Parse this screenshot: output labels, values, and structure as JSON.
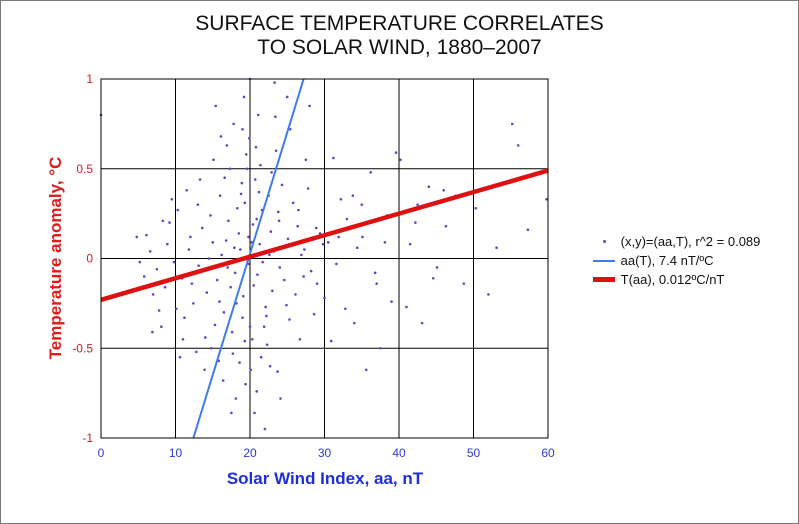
{
  "chart_data": {
    "type": "scatter",
    "title_lines": [
      "SURFACE TEMPERATURE CORRELATES",
      "TO SOLAR WIND, 1880–2007"
    ],
    "xlabel": "Solar Wind Index, aa, nT",
    "ylabel": "Temperature anomaly, °C",
    "xlim": [
      0,
      60
    ],
    "ylim": [
      -1,
      1
    ],
    "xticks": [
      0,
      10,
      20,
      30,
      40,
      50,
      60
    ],
    "xtick_labels": [
      "0",
      "10",
      "20",
      "30",
      "40",
      "50",
      "60"
    ],
    "yticks": [
      -1,
      -0.5,
      0,
      0.5,
      1
    ],
    "ytick_labels": [
      "-1",
      "-0.5",
      "0",
      "0.5",
      "1"
    ],
    "grid": true,
    "legend_position": "right",
    "colors": {
      "title": "#111111",
      "xlabel": "#1f2fd6",
      "ylabel": "#e01b1b",
      "xtick": "#2e3bd0",
      "ytick": "#d41c1c",
      "points": "#6a3fc8",
      "aa_line": "#3d7de8",
      "t_line": "#dd1111",
      "grid": "#000000"
    },
    "series": [
      {
        "name": "(x,y)=(aa,T), r^2 = 0.089",
        "kind": "scatter",
        "points": [
          [
            20.0,
            1.0
          ],
          [
            19.8,
            -0.03
          ],
          [
            21.3,
            0.08
          ],
          [
            19.7,
            -0.01
          ],
          [
            17.4,
            -0.16
          ],
          [
            20.2,
            0.09
          ],
          [
            24.0,
            -0.05
          ],
          [
            18.7,
            0.05
          ],
          [
            22.8,
            0.15
          ],
          [
            19.1,
            -0.21
          ],
          [
            21.7,
            -0.02
          ],
          [
            16.8,
            0.1
          ],
          [
            23.2,
            0.04
          ],
          [
            18.0,
            -0.08
          ],
          [
            20.9,
            0.22
          ],
          [
            15.6,
            -0.12
          ],
          [
            25.1,
            0.11
          ],
          [
            19.3,
            0.31
          ],
          [
            22.1,
            -0.27
          ],
          [
            17.9,
            0.06
          ],
          [
            26.4,
            0.18
          ],
          [
            14.2,
            -0.19
          ],
          [
            21.0,
            -0.09
          ],
          [
            18.5,
            0.14
          ],
          [
            23.8,
            0.26
          ],
          [
            20.5,
            -0.15
          ],
          [
            16.2,
            0.02
          ],
          [
            27.3,
            0.05
          ],
          [
            19.0,
            -0.33
          ],
          [
            22.5,
            0.35
          ],
          [
            13.1,
            -0.04
          ],
          [
            24.6,
            -0.12
          ],
          [
            17.1,
            0.21
          ],
          [
            20.7,
            0.44
          ],
          [
            15.0,
            0.09
          ],
          [
            28.2,
            -0.07
          ],
          [
            21.9,
            -0.38
          ],
          [
            18.3,
            0.28
          ],
          [
            12.4,
            -0.25
          ],
          [
            25.8,
            0.31
          ],
          [
            19.5,
            0.58
          ],
          [
            23.0,
            -0.18
          ],
          [
            16.5,
            -0.3
          ],
          [
            29.4,
            0.14
          ],
          [
            11.8,
            0.05
          ],
          [
            20.3,
            -0.45
          ],
          [
            26.9,
            0.02
          ],
          [
            14.7,
            0.24
          ],
          [
            22.9,
            0.48
          ],
          [
            17.6,
            -0.41
          ],
          [
            10.9,
            -0.11
          ],
          [
            30.5,
            0.09
          ],
          [
            19.9,
            0.67
          ],
          [
            24.9,
            -0.26
          ],
          [
            13.6,
            0.17
          ],
          [
            21.5,
            -0.55
          ],
          [
            27.8,
            0.39
          ],
          [
            15.3,
            -0.37
          ],
          [
            18.9,
            0.42
          ],
          [
            31.6,
            -0.03
          ],
          [
            9.8,
            -0.02
          ],
          [
            23.5,
            0.6
          ],
          [
            16.0,
            0.35
          ],
          [
            20.1,
            -0.62
          ],
          [
            33.0,
            0.22
          ],
          [
            12.0,
            0.12
          ],
          [
            26.1,
            -0.2
          ],
          [
            17.3,
            0.5
          ],
          [
            8.6,
            -0.16
          ],
          [
            22.3,
            -0.48
          ],
          [
            35.1,
            0.12
          ],
          [
            14.0,
            -0.44
          ],
          [
            25.4,
            0.72
          ],
          [
            19.4,
            -0.7
          ],
          [
            10.3,
            0.27
          ],
          [
            29.0,
            -0.14
          ],
          [
            36.8,
            -0.08
          ],
          [
            7.5,
            -0.06
          ],
          [
            21.1,
            0.8
          ],
          [
            18.1,
            -0.78
          ],
          [
            32.2,
            0.33
          ],
          [
            11.2,
            -0.33
          ],
          [
            24.3,
            0.41
          ],
          [
            38.4,
            0.24
          ],
          [
            6.6,
            0.04
          ],
          [
            20.6,
            -0.86
          ],
          [
            13.3,
            0.44
          ],
          [
            28.6,
            -0.31
          ],
          [
            16.9,
            0.63
          ],
          [
            40.2,
            0.55
          ],
          [
            34.0,
            -0.36
          ],
          [
            9.2,
            0.2
          ],
          [
            23.7,
            -0.63
          ],
          [
            42.5,
            0.3
          ],
          [
            5.8,
            -0.1
          ],
          [
            19.2,
            0.9
          ],
          [
            30.9,
            -0.46
          ],
          [
            15.8,
            -0.57
          ],
          [
            45.1,
            -0.05
          ],
          [
            27.5,
            0.55
          ],
          [
            12.8,
            -0.52
          ],
          [
            47.6,
            0.35
          ],
          [
            36.2,
            0.48
          ],
          [
            8.1,
            -0.38
          ],
          [
            22.0,
            -0.95
          ],
          [
            50.3,
            0.28
          ],
          [
            39.0,
            -0.24
          ],
          [
            10.6,
            -0.55
          ],
          [
            44.0,
            0.4
          ],
          [
            52.0,
            -0.2
          ],
          [
            55.2,
            0.75
          ],
          [
            56.0,
            0.63
          ],
          [
            57.3,
            0.16
          ],
          [
            59.8,
            0.33
          ],
          [
            53.1,
            0.06
          ],
          [
            48.7,
            -0.14
          ],
          [
            46.3,
            0.18
          ],
          [
            43.1,
            -0.36
          ],
          [
            41.5,
            0.08
          ],
          [
            37.5,
            -0.5
          ],
          [
            35.6,
            -0.62
          ],
          [
            33.8,
            0.35
          ],
          [
            31.2,
            0.56
          ],
          [
            29.8,
            0.08
          ],
          [
            28.0,
            0.85
          ],
          [
            26.7,
            -0.45
          ],
          [
            25.0,
            0.9
          ],
          [
            24.1,
            -0.78
          ],
          [
            23.3,
            0.98
          ],
          [
            6.1,
            0.13
          ],
          [
            7.0,
            -0.2
          ],
          [
            8.9,
            0.08
          ],
          [
            5.2,
            -0.02
          ],
          [
            4.8,
            0.12
          ],
          [
            11.5,
            0.38
          ],
          [
            13.9,
            -0.62
          ],
          [
            15.1,
            0.55
          ],
          [
            16.4,
            -0.68
          ],
          [
            17.8,
            0.75
          ],
          [
            18.6,
            -0.58
          ],
          [
            19.6,
            0.5
          ],
          [
            20.4,
            0.19
          ],
          [
            21.2,
            0.37
          ],
          [
            22.6,
            0.02
          ],
          [
            14.5,
            0.0
          ],
          [
            15.9,
            -0.24
          ],
          [
            17.0,
            -0.05
          ],
          [
            18.2,
            -0.25
          ],
          [
            19.8,
            0.12
          ],
          [
            21.6,
            0.27
          ],
          [
            12.2,
            -0.14
          ],
          [
            10.1,
            -0.28
          ],
          [
            9.5,
            0.33
          ],
          [
            8.3,
            0.21
          ],
          [
            7.8,
            -0.29
          ],
          [
            6.9,
            -0.41
          ],
          [
            11.0,
            -0.45
          ],
          [
            13.0,
            0.3
          ],
          [
            14.8,
            -0.5
          ],
          [
            16.6,
            0.45
          ],
          [
            17.7,
            -0.53
          ],
          [
            19.3,
            -0.46
          ],
          [
            20.8,
            0.62
          ],
          [
            22.2,
            -0.32
          ],
          [
            23.9,
            0.21
          ],
          [
            25.3,
            -0.34
          ],
          [
            26.5,
            0.27
          ],
          [
            27.2,
            -0.1
          ],
          [
            28.9,
            0.17
          ],
          [
            30.0,
            -0.22
          ],
          [
            31.9,
            0.12
          ],
          [
            32.8,
            -0.28
          ],
          [
            34.4,
            0.06
          ],
          [
            35.0,
            0.3
          ],
          [
            37.0,
            -0.14
          ],
          [
            38.1,
            0.09
          ],
          [
            39.6,
            0.59
          ],
          [
            41.0,
            -0.27
          ],
          [
            42.2,
            0.2
          ],
          [
            44.6,
            -0.11
          ],
          [
            46.0,
            0.38
          ],
          [
            0.0,
            0.8
          ],
          [
            18.8,
            0.36
          ],
          [
            20.0,
            -0.38
          ],
          [
            21.4,
            0.52
          ],
          [
            22.7,
            -0.6
          ],
          [
            16.1,
            0.68
          ],
          [
            17.5,
            -0.86
          ],
          [
            19.0,
            0.72
          ],
          [
            20.9,
            -0.74
          ],
          [
            15.4,
            0.85
          ],
          [
            23.4,
            0.79
          ]
        ]
      },
      {
        "name": "aa(T), 7.4 nT/ºC",
        "kind": "line",
        "line": [
          [
            12.4,
            -1.0
          ],
          [
            27.2,
            1.0
          ]
        ]
      },
      {
        "name": "T(aa), 0.012ºC/nT",
        "kind": "line",
        "line": [
          [
            0,
            -0.23
          ],
          [
            60,
            0.49
          ]
        ]
      }
    ]
  }
}
